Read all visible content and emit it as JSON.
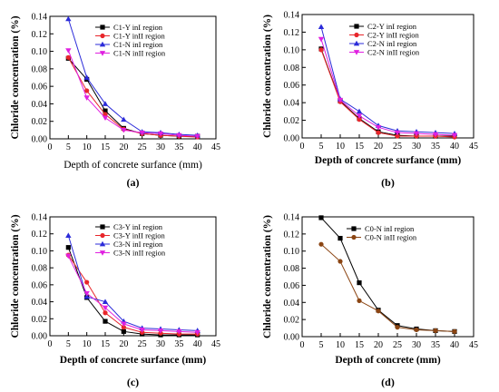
{
  "chart_data": [
    {
      "type": "line",
      "panel_label": "(a)",
      "xlabel": "Depth of concrete surfance (mm)",
      "ylabel": "Chloride concentration (%)",
      "xlim": [
        0,
        45
      ],
      "ylim": [
        0,
        0.14
      ],
      "xticks": [
        "0",
        "5",
        "10",
        "15",
        "20",
        "25",
        "30",
        "35",
        "40",
        "45"
      ],
      "yticks": [
        "0.00",
        "0.02",
        "0.04",
        "0.06",
        "0.08",
        "0.10",
        "0.12",
        "0.14"
      ],
      "legend_position": "top-right",
      "x": [
        5,
        10,
        15,
        20,
        25,
        30,
        35,
        40
      ],
      "series": [
        {
          "name": "C1-Y inI  region",
          "color": "#000000",
          "marker": "square",
          "values": [
            0.092,
            0.068,
            0.032,
            0.012,
            0.006,
            0.004,
            0.003,
            0.003
          ]
        },
        {
          "name": "C1-Y inII region",
          "color": "#e8262b",
          "marker": "circle",
          "values": [
            0.093,
            0.055,
            0.028,
            0.011,
            0.006,
            0.004,
            0.003,
            0.002
          ]
        },
        {
          "name": "C1-N inI  region",
          "color": "#2b2bd9",
          "marker": "triangle-up",
          "values": [
            0.137,
            0.07,
            0.04,
            0.022,
            0.008,
            0.007,
            0.005,
            0.004
          ]
        },
        {
          "name": "C1-N inII region",
          "color": "#e020e0",
          "marker": "triangle-down",
          "values": [
            0.101,
            0.047,
            0.024,
            0.01,
            0.007,
            0.006,
            0.004,
            0.003
          ]
        }
      ]
    },
    {
      "type": "line",
      "panel_label": "(b)",
      "xlabel": "Depth of concrete surfance (mm)",
      "ylabel": "Chloride concentration (%)",
      "xlim": [
        0,
        45
      ],
      "ylim": [
        0,
        0.14
      ],
      "xticks": [
        "0",
        "5",
        "10",
        "15",
        "20",
        "25",
        "30",
        "35",
        "40",
        "45"
      ],
      "yticks": [
        "0.00",
        "0.02",
        "0.04",
        "0.06",
        "0.08",
        "0.10",
        "0.12",
        "0.14"
      ],
      "legend_position": "top-right",
      "x": [
        5,
        10,
        15,
        20,
        25,
        30,
        35,
        40
      ],
      "series": [
        {
          "name": "C2-Y inI  region",
          "color": "#000000",
          "marker": "square",
          "values": [
            0.101,
            0.042,
            0.022,
            0.007,
            0.003,
            0.002,
            0.002,
            0.002
          ]
        },
        {
          "name": "C2-Y inII region",
          "color": "#e8262b",
          "marker": "circle",
          "values": [
            0.1,
            0.041,
            0.021,
            0.006,
            0.002,
            0.002,
            0.002,
            0.001
          ]
        },
        {
          "name": "C2-N inI  region",
          "color": "#2b2bd9",
          "marker": "triangle-up",
          "values": [
            0.126,
            0.044,
            0.03,
            0.014,
            0.008,
            0.007,
            0.006,
            0.005
          ]
        },
        {
          "name": "C2-N inII region",
          "color": "#e020e0",
          "marker": "triangle-down",
          "values": [
            0.112,
            0.043,
            0.025,
            0.012,
            0.006,
            0.005,
            0.004,
            0.003
          ]
        }
      ]
    },
    {
      "type": "line",
      "panel_label": "(c)",
      "xlabel": "Depth of concrete surfance (mm)",
      "ylabel": "Chloride concentration (%)",
      "xlim": [
        0,
        45
      ],
      "ylim": [
        0,
        0.14
      ],
      "xticks": [
        "0",
        "5",
        "10",
        "15",
        "20",
        "25",
        "30",
        "35",
        "40",
        "45"
      ],
      "yticks": [
        "0.00",
        "0.02",
        "0.04",
        "0.06",
        "0.08",
        "0.10",
        "0.12",
        "0.14"
      ],
      "legend_position": "top-right",
      "x": [
        5,
        10,
        15,
        20,
        25,
        30,
        35,
        40
      ],
      "series": [
        {
          "name": "C3-Y inI  region",
          "color": "#000000",
          "marker": "square",
          "values": [
            0.104,
            0.045,
            0.017,
            0.005,
            0.002,
            0.001,
            0.001,
            0.001
          ]
        },
        {
          "name": "C3-Y inII region",
          "color": "#e8262b",
          "marker": "circle",
          "values": [
            0.095,
            0.063,
            0.027,
            0.01,
            0.004,
            0.003,
            0.002,
            0.002
          ]
        },
        {
          "name": "C3-N inI  region",
          "color": "#2b2bd9",
          "marker": "triangle-up",
          "values": [
            0.118,
            0.046,
            0.04,
            0.017,
            0.009,
            0.008,
            0.007,
            0.006
          ]
        },
        {
          "name": "C3-N inII region",
          "color": "#e020e0",
          "marker": "triangle-down",
          "values": [
            0.094,
            0.05,
            0.033,
            0.014,
            0.007,
            0.006,
            0.005,
            0.004
          ]
        }
      ]
    },
    {
      "type": "line",
      "panel_label": "(d)",
      "xlabel": "Depth of concrete  (mm)",
      "ylabel": "Chloride concentration (%)",
      "xlim": [
        0,
        45
      ],
      "ylim": [
        0,
        0.14
      ],
      "xticks": [
        "0",
        "5",
        "10",
        "15",
        "20",
        "25",
        "30",
        "35",
        "40",
        "45"
      ],
      "yticks": [
        "0.00",
        "0.02",
        "0.04",
        "0.06",
        "0.08",
        "0.10",
        "0.12",
        "0.14"
      ],
      "legend_position": "top-right",
      "x": [
        5,
        10,
        15,
        20,
        25,
        30,
        35,
        40
      ],
      "series": [
        {
          "name": "C0-N inI  region",
          "color": "#000000",
          "marker": "square",
          "values": [
            0.139,
            0.115,
            0.063,
            0.031,
            0.013,
            0.009,
            0.007,
            0.006
          ]
        },
        {
          "name": "C0-N inII region",
          "color": "#8b4513",
          "marker": "circle",
          "values": [
            0.108,
            0.088,
            0.042,
            0.03,
            0.011,
            0.008,
            0.007,
            0.006
          ]
        }
      ]
    }
  ]
}
